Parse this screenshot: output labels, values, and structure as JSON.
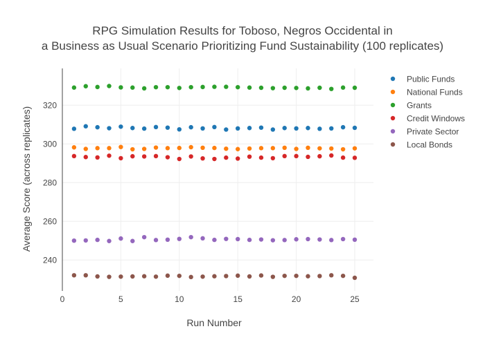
{
  "chart_data": {
    "type": "scatter",
    "title_lines": [
      "RPG Simulation Results for Toboso, Negros Occidental in",
      "a Business as Usual Scenario Prioritizing Fund Sustainability (100 replicates)"
    ],
    "xlabel": "Run Number",
    "ylabel": "Average Score (across replicates)",
    "xlim": [
      0,
      26.6
    ],
    "ylim": [
      224,
      339
    ],
    "x_ticks": [
      0,
      5,
      10,
      15,
      20,
      25
    ],
    "y_ticks": [
      240,
      260,
      280,
      300,
      320
    ],
    "grid": true,
    "legend_position": "top-right",
    "x": [
      1,
      2,
      3,
      4,
      5,
      6,
      7,
      8,
      9,
      10,
      11,
      12,
      13,
      14,
      15,
      16,
      17,
      18,
      19,
      20,
      21,
      22,
      23,
      24,
      25
    ],
    "series": [
      {
        "name": "Public Funds",
        "color": "#1f77b4",
        "values": [
          307.8,
          309.1,
          308.6,
          308.1,
          308.9,
          308.2,
          307.9,
          308.7,
          308.4,
          307.5,
          308.6,
          308.0,
          308.7,
          307.4,
          308.0,
          308.2,
          308.4,
          307.4,
          308.2,
          308.0,
          308.2,
          307.8,
          308.0,
          308.6,
          308.3
        ]
      },
      {
        "name": "National Funds",
        "color": "#ff7f0e",
        "values": [
          298.2,
          297.4,
          297.8,
          297.8,
          298.4,
          297.2,
          297.4,
          298.1,
          297.8,
          297.9,
          298.3,
          298.0,
          297.9,
          297.5,
          297.3,
          297.6,
          297.8,
          297.8,
          298.0,
          297.4,
          298.0,
          297.7,
          297.6,
          297.2,
          297.7
        ]
      },
      {
        "name": "Grants",
        "color": "#2ca02c",
        "values": [
          329.1,
          329.8,
          329.4,
          329.9,
          329.2,
          329.1,
          328.7,
          329.3,
          329.3,
          328.9,
          329.3,
          329.4,
          329.5,
          329.5,
          329.3,
          329.1,
          329.0,
          328.8,
          329.0,
          328.9,
          328.7,
          329.0,
          328.4,
          329.1,
          329.0
        ]
      },
      {
        "name": "Credit Windows",
        "color": "#d62728",
        "values": [
          293.7,
          293.2,
          293.0,
          293.9,
          292.6,
          293.6,
          293.5,
          293.7,
          293.1,
          292.2,
          293.5,
          292.5,
          292.2,
          292.9,
          292.4,
          293.4,
          292.9,
          292.6,
          293.7,
          293.7,
          293.3,
          293.6,
          294.0,
          292.9,
          292.8
        ]
      },
      {
        "name": "Private Sector",
        "color": "#9467bd",
        "values": [
          250.0,
          250.1,
          250.4,
          249.8,
          251.1,
          249.8,
          251.8,
          250.3,
          250.5,
          250.9,
          251.8,
          251.2,
          250.4,
          250.9,
          250.8,
          250.4,
          250.6,
          250.2,
          250.3,
          250.7,
          250.8,
          250.6,
          250.3,
          250.8,
          250.5
        ]
      },
      {
        "name": "Local Bonds",
        "color": "#8c564b",
        "values": [
          232.1,
          232.1,
          231.5,
          231.3,
          231.4,
          231.5,
          231.6,
          231.4,
          231.9,
          231.8,
          231.2,
          231.4,
          231.6,
          231.7,
          231.9,
          231.5,
          232.0,
          231.3,
          231.8,
          231.8,
          231.6,
          231.7,
          232.1,
          231.8,
          230.8
        ]
      }
    ]
  }
}
